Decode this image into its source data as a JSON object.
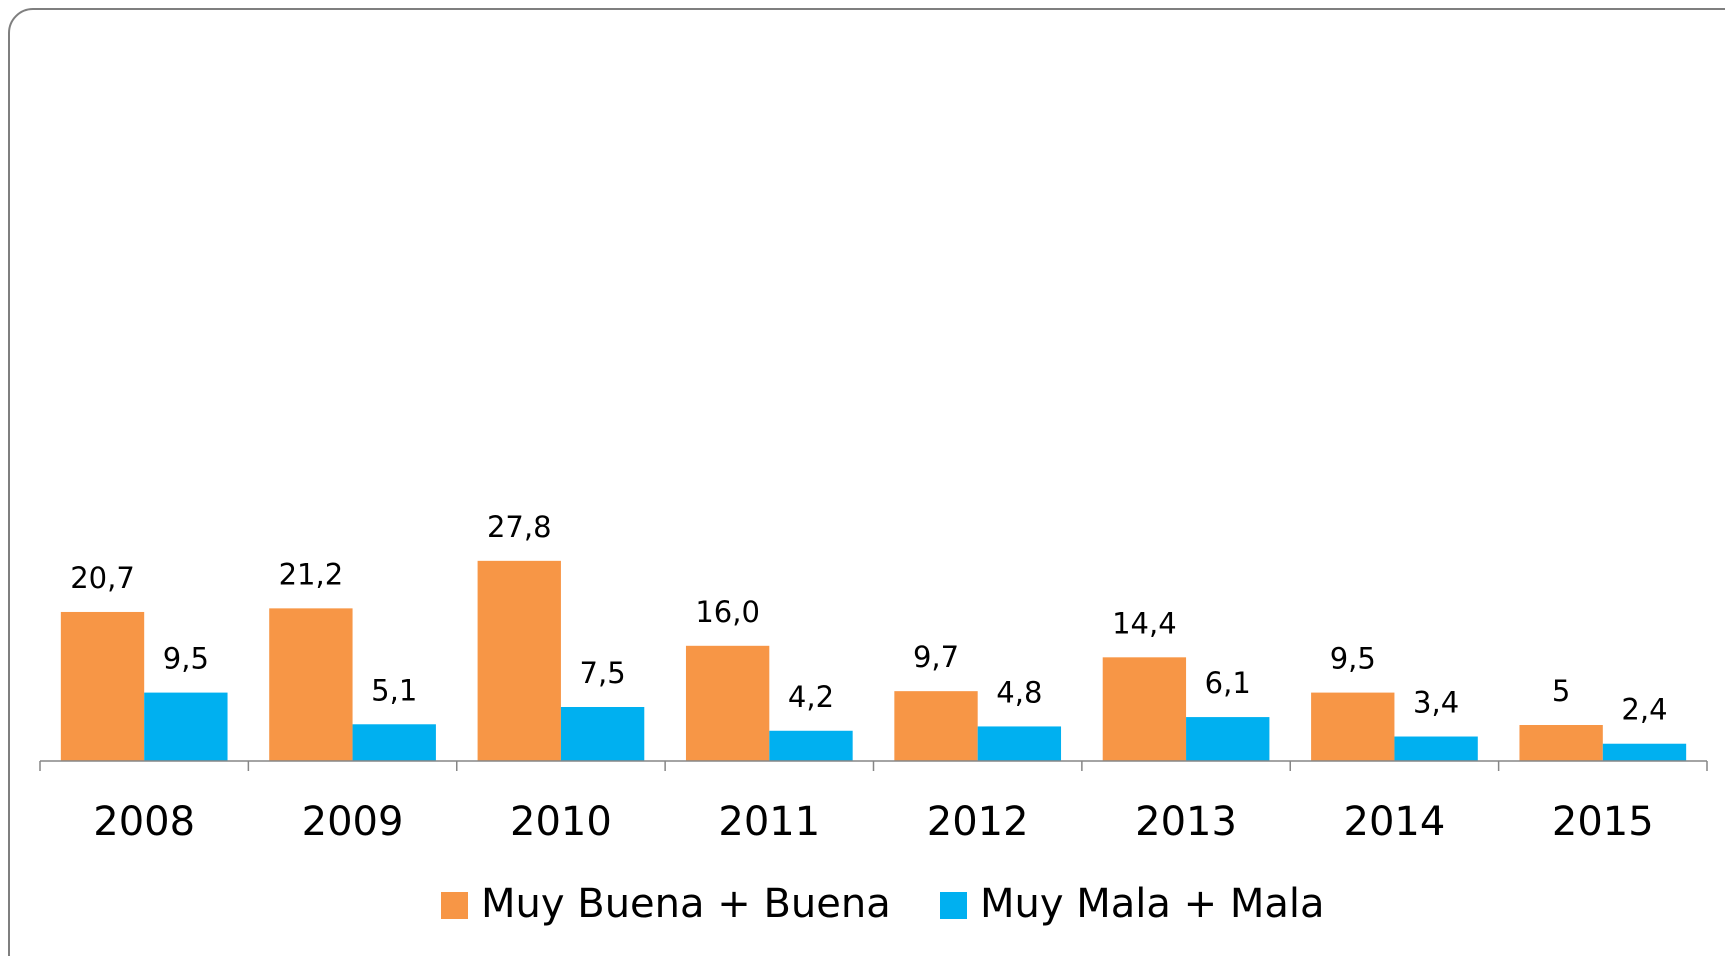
{
  "chart_data": {
    "type": "bar",
    "categories": [
      "2008",
      "2009",
      "2010",
      "2011",
      "2012",
      "2013",
      "2014",
      "2015"
    ],
    "series": [
      {
        "name": "Muy Buena + Buena",
        "color": "#f79646",
        "values": [
          20.7,
          21.2,
          27.8,
          16.0,
          9.7,
          14.4,
          9.5,
          5
        ],
        "value_labels": [
          "20,7",
          "21,2",
          "27,8",
          "16,0",
          "9,7",
          "14,4",
          "9,5",
          "5"
        ]
      },
      {
        "name": "Muy Mala + Mala",
        "color": "#00b0f0",
        "values": [
          9.5,
          5.1,
          7.5,
          4.2,
          4.8,
          6.1,
          3.4,
          2.4
        ],
        "value_labels": [
          "9,5",
          "5,1",
          "7,5",
          "4,2",
          "4,8",
          "6,1",
          "3,4",
          "2,4"
        ]
      }
    ],
    "ylim": [
      0,
      100
    ],
    "grid": false,
    "legend": "bottom"
  }
}
